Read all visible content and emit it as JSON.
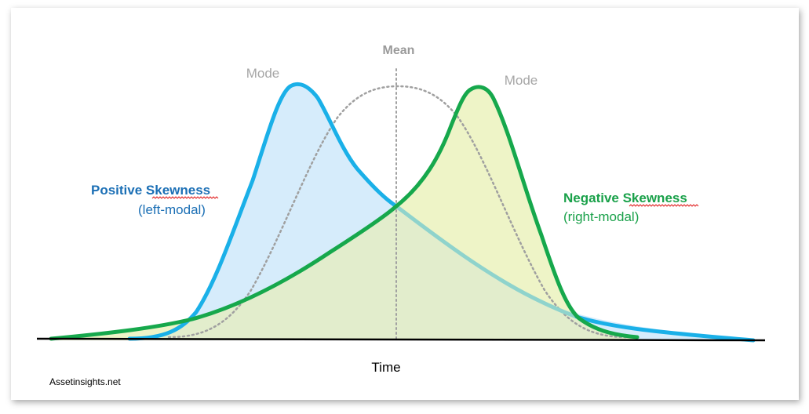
{
  "labels": {
    "mean": "Mean",
    "mode_left": "Mode",
    "mode_right": "Mode",
    "positive_title": "Positive Skewness",
    "positive_sub": "(left-modal)",
    "negative_title": "Negative Skewness",
    "negative_sub": "(right-modal)",
    "x_axis": "Time",
    "credit": "Assetinsights.net"
  },
  "colors": {
    "positive_stroke": "#1ab0e8",
    "positive_fill": "#d6ecfb",
    "negative_stroke": "#16a84c",
    "negative_fill": "#eef4c7",
    "overlap_fill": "#e2edcc",
    "positive_tail": "#8fd3cc",
    "normal_dotted": "#a0a0a0",
    "axis": "#000000"
  },
  "icons": {
    "spellcheck_underline": "red-wavy-underline"
  }
}
